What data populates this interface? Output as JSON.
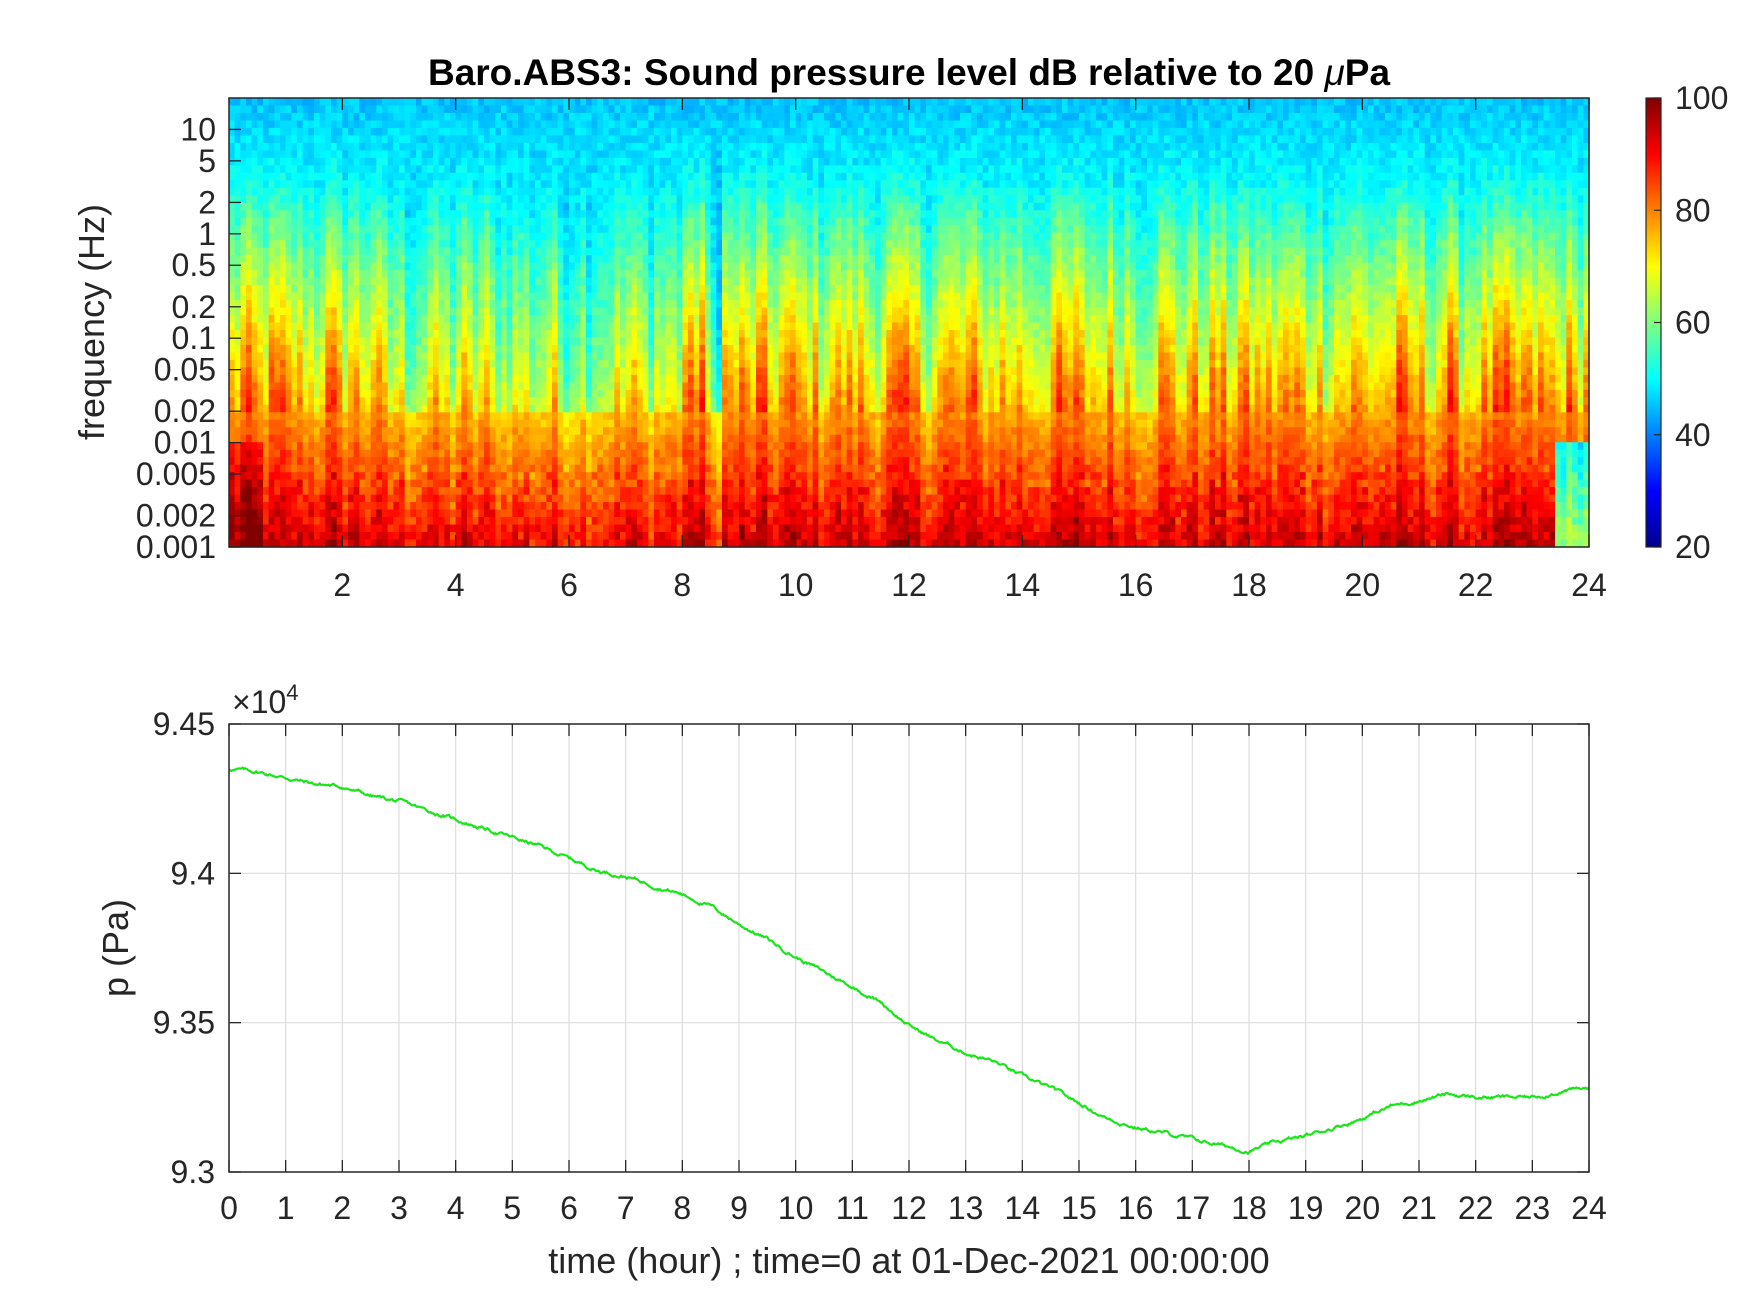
{
  "chart_data": [
    {
      "type": "heatmap",
      "title": "Baro.ABS3: Sound pressure level dB relative to 20 μPa",
      "title_parts": {
        "main": "Baro.ABS3: Sound pressure level dB relative to 20 ",
        "mu": "μ",
        "unit": "Pa"
      },
      "ylabel": "frequency (Hz)",
      "xlabel": "",
      "xlim": [
        0,
        24
      ],
      "ylim": [
        0.001,
        20
      ],
      "yscale": "log",
      "xticks": [
        "2",
        "4",
        "6",
        "8",
        "10",
        "12",
        "14",
        "16",
        "18",
        "20",
        "22",
        "24"
      ],
      "xtick_values": [
        2,
        4,
        6,
        8,
        10,
        12,
        14,
        16,
        18,
        20,
        22,
        24
      ],
      "yticks": [
        "0.001",
        "0.002",
        "0.005",
        "0.01",
        "0.02",
        "0.05",
        "0.1",
        "0.2",
        "0.5",
        "1",
        "2",
        "5",
        "10"
      ],
      "ytick_values": [
        0.001,
        0.002,
        0.005,
        0.01,
        0.02,
        0.05,
        0.1,
        0.2,
        0.5,
        1,
        2,
        5,
        10
      ],
      "colormap": "jet",
      "clim": [
        20,
        100
      ],
      "colorbar_ticks": [
        "20",
        "40",
        "60",
        "80",
        "100"
      ],
      "colorbar_tick_values": [
        20,
        40,
        60,
        80,
        100
      ],
      "grid": false
    },
    {
      "type": "line",
      "xlabel": "time (hour) ; time=0 at 01-Dec-2021 00:00:00",
      "ylabel": "p (Pa)",
      "exponent_label": {
        "base": "×10",
        "power": "4"
      },
      "xlim": [
        0,
        24
      ],
      "ylim": [
        93000,
        94500
      ],
      "xticks": [
        "0",
        "1",
        "2",
        "3",
        "4",
        "5",
        "6",
        "7",
        "8",
        "9",
        "10",
        "11",
        "12",
        "13",
        "14",
        "15",
        "16",
        "17",
        "18",
        "19",
        "20",
        "21",
        "22",
        "23",
        "24"
      ],
      "yticks": [
        "9.3",
        "9.35",
        "9.4",
        "9.45"
      ],
      "ytick_values": [
        93000,
        93500,
        94000,
        94500
      ],
      "grid": true,
      "color": "#19e619",
      "series": [
        {
          "x": [
            0,
            0.5,
            1,
            1.5,
            2,
            2.5,
            3,
            3.5,
            4,
            4.5,
            5,
            5.5,
            6,
            6.5,
            7,
            7.5,
            8,
            8.5,
            9,
            9.5,
            10,
            10.5,
            11,
            11.5,
            12,
            12.5,
            13,
            13.5,
            14,
            14.5,
            15,
            15.5,
            16,
            16.5,
            17,
            17.5,
            18,
            18.5,
            19,
            19.5,
            20,
            20.5,
            21,
            21.5,
            22,
            22.5,
            23,
            23.5,
            24
          ],
          "y": [
            94350,
            94340,
            94320,
            94300,
            94290,
            94260,
            94240,
            94210,
            94180,
            94150,
            94120,
            94090,
            94050,
            94010,
            93990,
            93960,
            93930,
            93890,
            93830,
            93780,
            93720,
            93670,
            93620,
            93570,
            93490,
            93440,
            93400,
            93370,
            93320,
            93280,
            93230,
            93180,
            93150,
            93130,
            93110,
            93090,
            93070,
            93100,
            93120,
            93150,
            93180,
            93220,
            93240,
            93260,
            93250,
            93250,
            93250,
            93270,
            93280
          ]
        }
      ]
    }
  ]
}
